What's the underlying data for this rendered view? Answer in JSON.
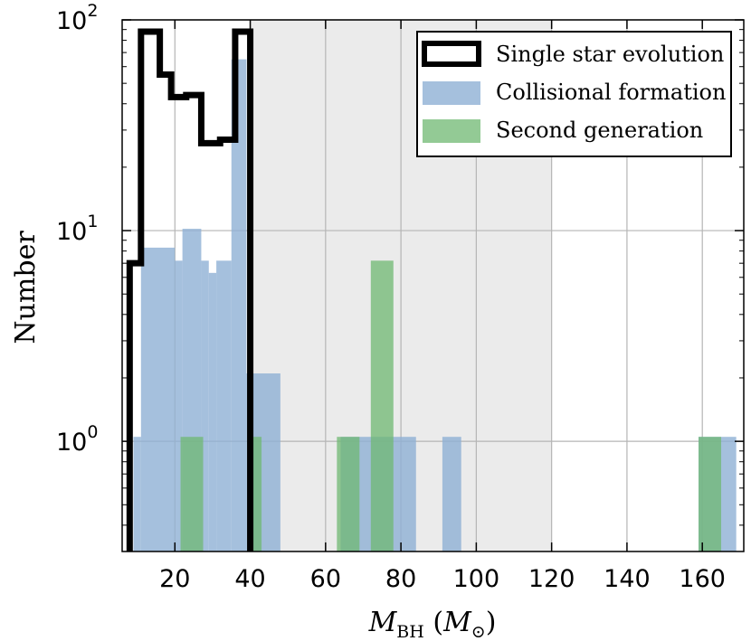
{
  "chart_data": {
    "type": "bar",
    "title": "",
    "xlabel": "M_BH (M_⊙)",
    "xlabel_parts": {
      "main": "M",
      "sub": "BH",
      "open": " (",
      "main2": "M",
      "sub2": "⊙",
      "close": ")"
    },
    "ylabel": "Number",
    "yscale": "log",
    "xlim": [
      6,
      171
    ],
    "ylim": [
      0.3,
      100
    ],
    "x_ticks": [
      20,
      40,
      60,
      80,
      100,
      120,
      140,
      160
    ],
    "y_ticks": [
      {
        "value": 1,
        "base": "10",
        "exp": "0"
      },
      {
        "value": 10,
        "base": "10",
        "exp": "1"
      },
      {
        "value": 100,
        "base": "10",
        "exp": "2"
      }
    ],
    "grid": true,
    "shaded_region": {
      "x_from": 40,
      "x_to": 120,
      "color": "#ebebeb"
    },
    "legend_position": "top-right",
    "series": [
      {
        "name": "Single star evolution",
        "style": "step-outline",
        "color": "#000000",
        "bins": [
          {
            "x0": 8,
            "x1": 11,
            "y": 7
          },
          {
            "x0": 11,
            "x1": 16,
            "y": 88
          },
          {
            "x0": 16,
            "x1": 19,
            "y": 55
          },
          {
            "x0": 19,
            "x1": 23,
            "y": 43
          },
          {
            "x0": 23,
            "x1": 27,
            "y": 44
          },
          {
            "x0": 27,
            "x1": 32,
            "y": 26
          },
          {
            "x0": 32,
            "x1": 36,
            "y": 27
          },
          {
            "x0": 36,
            "x1": 40,
            "y": 88
          }
        ]
      },
      {
        "name": "Collisional formation",
        "style": "filled",
        "color": "#8eb0d4",
        "opacity": 0.8,
        "bins": [
          {
            "x0": 9,
            "x1": 11,
            "y": 1.05
          },
          {
            "x0": 11,
            "x1": 20,
            "y": 8.3
          },
          {
            "x0": 20,
            "x1": 22,
            "y": 7.2
          },
          {
            "x0": 22,
            "x1": 27,
            "y": 10.2
          },
          {
            "x0": 27,
            "x1": 29,
            "y": 7.2
          },
          {
            "x0": 29,
            "x1": 31,
            "y": 6.3
          },
          {
            "x0": 31,
            "x1": 35,
            "y": 7.2
          },
          {
            "x0": 35,
            "x1": 39,
            "y": 65
          },
          {
            "x0": 39,
            "x1": 48,
            "y": 2.1
          },
          {
            "x0": 64,
            "x1": 84,
            "y": 1.05
          },
          {
            "x0": 91,
            "x1": 96,
            "y": 1.05
          },
          {
            "x0": 159,
            "x1": 169,
            "y": 1.05
          }
        ]
      },
      {
        "name": "Second generation",
        "style": "filled",
        "color": "#6fb871",
        "opacity": 0.75,
        "bins": [
          {
            "x0": 21.5,
            "x1": 27.5,
            "y": 1.05
          },
          {
            "x0": 40,
            "x1": 43,
            "y": 1.05
          },
          {
            "x0": 63,
            "x1": 69,
            "y": 1.05
          },
          {
            "x0": 72,
            "x1": 78,
            "y": 7.2
          },
          {
            "x0": 159,
            "x1": 165,
            "y": 1.05
          }
        ]
      }
    ]
  }
}
